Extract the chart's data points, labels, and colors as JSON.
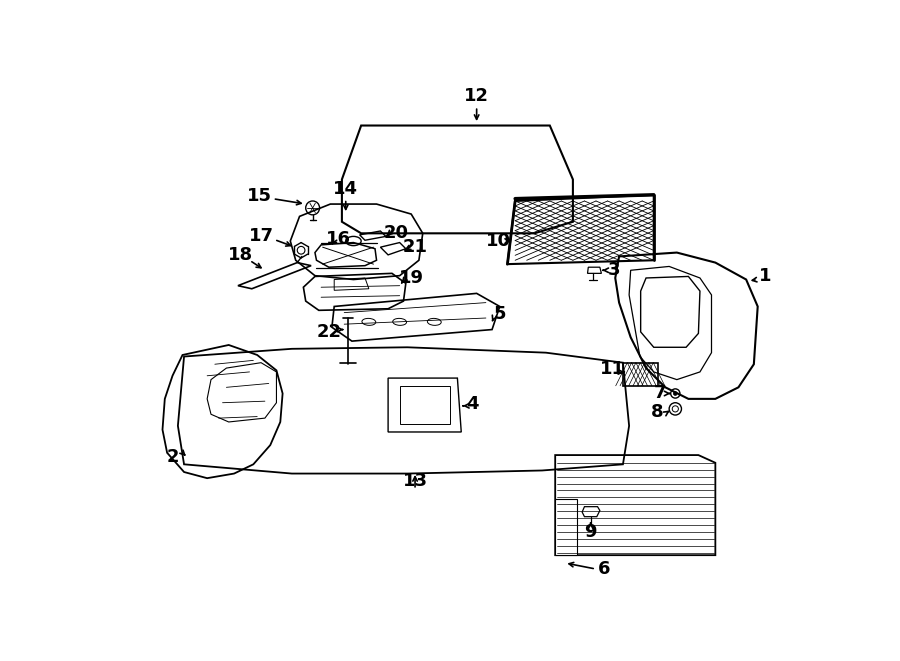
{
  "bg_color": "#ffffff",
  "line_color": "#000000",
  "fig_width": 9.0,
  "fig_height": 6.61,
  "dpi": 100,
  "lw": 1.2,
  "label_fs": 13
}
